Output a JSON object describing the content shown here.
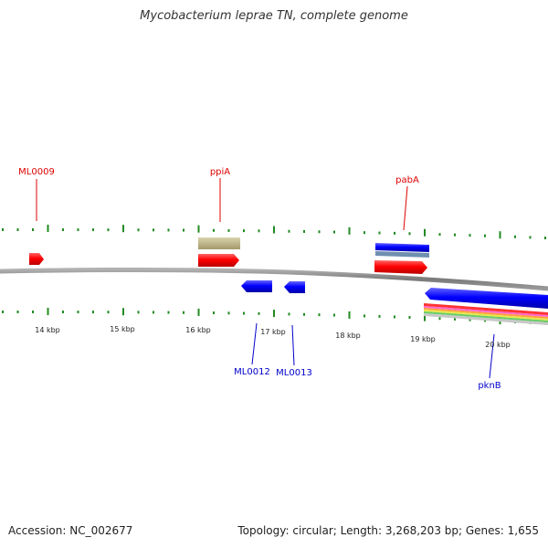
{
  "title": "Mycobacterium leprae TN, complete genome",
  "footer": {
    "accession": "Accession: NC_002677",
    "summary": "Topology: circular; Length: 3,268,203 bp; Genes: 1,655"
  },
  "colors": {
    "forward_label": "#dd0000",
    "reverse_label": "#0000cc",
    "tick": "#228b22",
    "backbone": "#888888",
    "forward_gene": "#ff0000",
    "reverse_gene": "#0000ff",
    "trna_feature": "#bdb58a"
  },
  "scale": {
    "ticks": [
      "14 kbp",
      "15 kbp",
      "16 kbp",
      "17 kbp",
      "18 kbp",
      "19 kbp",
      "20 kbp"
    ]
  },
  "genes": {
    "forward": [
      {
        "id": "ML0009",
        "label": "ML0009"
      },
      {
        "id": "ppiA",
        "label": "ppiA"
      },
      {
        "id": "pabA",
        "label": "pabA"
      }
    ],
    "reverse": [
      {
        "id": "ML0012",
        "label": "ML0012"
      },
      {
        "id": "ML0013",
        "label": "ML0013"
      },
      {
        "id": "pknB",
        "label": "pknB"
      }
    ]
  }
}
